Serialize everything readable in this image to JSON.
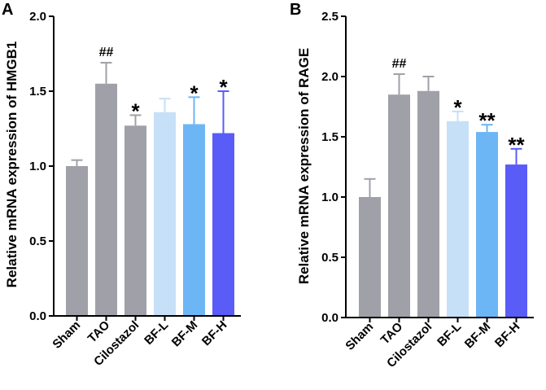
{
  "chart_data": [
    {
      "panel": "A",
      "type": "bar",
      "ylabel": "Relative mRNA expression of HMGB1",
      "ylim": [
        0,
        2.0
      ],
      "yticks": [
        "0.0",
        "0.5",
        "1.0",
        "1.5",
        "2.0"
      ],
      "categories": [
        "Sham",
        "TAO",
        "Cilostazol",
        "BF-L",
        "BF-M",
        "BF-H"
      ],
      "values": [
        1.0,
        1.55,
        1.27,
        1.36,
        1.28,
        1.22
      ],
      "errors": [
        0.04,
        0.14,
        0.07,
        0.09,
        0.18,
        0.28
      ],
      "annotations": [
        "",
        "##",
        "*",
        "",
        "*",
        "*"
      ],
      "colors": [
        "#a0a0a8",
        "#a0a0a8",
        "#a0a0a8",
        "#c6e0f7",
        "#6cb6f5",
        "#5a5cf7"
      ]
    },
    {
      "panel": "B",
      "type": "bar",
      "ylabel": "Relative mRNA expression of RAGE",
      "ylim": [
        0,
        2.5
      ],
      "yticks": [
        "0.0",
        "0.5",
        "1.0",
        "1.5",
        "2.0",
        "2.5"
      ],
      "categories": [
        "Sham",
        "TAO",
        "Cilostazol",
        "BF-L",
        "BF-M",
        "BF-H"
      ],
      "values": [
        1.0,
        1.85,
        1.88,
        1.63,
        1.54,
        1.27
      ],
      "errors": [
        0.15,
        0.17,
        0.12,
        0.08,
        0.06,
        0.13
      ],
      "annotations": [
        "",
        "##",
        "",
        "*",
        "**",
        "**"
      ],
      "colors": [
        "#a0a0a8",
        "#a0a0a8",
        "#a0a0a8",
        "#c6e0f7",
        "#6cb6f5",
        "#5a5cf7"
      ]
    }
  ]
}
